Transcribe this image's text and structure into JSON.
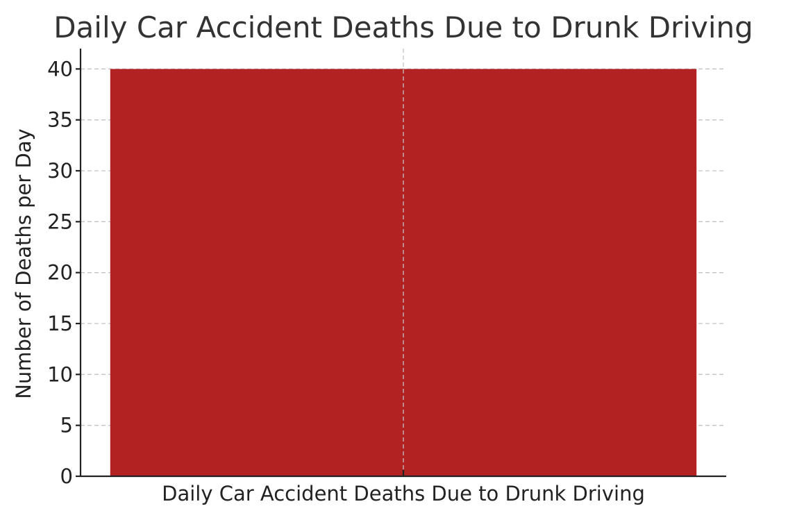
{
  "chart_data": {
    "type": "bar",
    "title": "Daily Car Accident Deaths Due to Drunk Driving",
    "xlabel": "",
    "ylabel": "Number of Deaths per Day",
    "categories": [
      "Daily Car Accident Deaths Due to Drunk Driving"
    ],
    "values": [
      40
    ],
    "ylim": [
      0,
      42
    ],
    "yticks": [
      0,
      5,
      10,
      15,
      20,
      25,
      30,
      35,
      40
    ],
    "grid": true,
    "bar_color": "#b22222"
  }
}
